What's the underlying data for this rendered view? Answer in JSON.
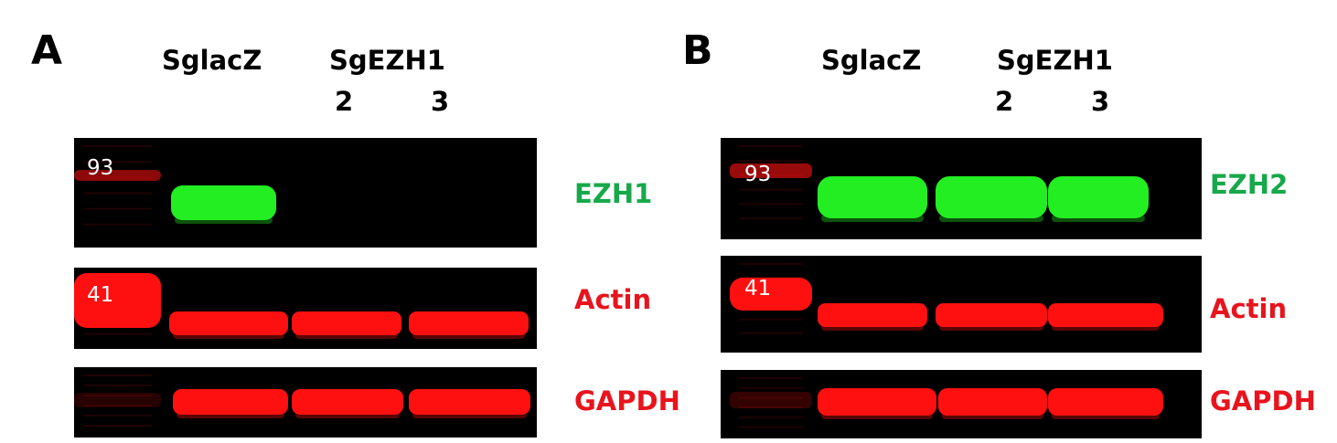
{
  "colors": {
    "green": "#17a84a",
    "red": "#e8141d",
    "blot_bg": "#000000",
    "band_green": "#22ee22",
    "band_red": "#ff1010"
  },
  "panels": [
    {
      "letter": "A",
      "control_label": "SglacZ",
      "sg_label": "SgEZH1",
      "lane_numbers": [
        "2",
        "3"
      ],
      "blots": [
        {
          "protein": "EZH1",
          "protein_color": "green",
          "marker": "93",
          "band_color": "green",
          "lane_levels": [
            1,
            0,
            0
          ]
        },
        {
          "protein": "Actin",
          "protein_color": "red",
          "marker": "41",
          "band_color": "red",
          "lane_levels": [
            1,
            1,
            1
          ]
        },
        {
          "protein": "GAPDH",
          "protein_color": "red",
          "marker": "",
          "band_color": "red",
          "lane_levels": [
            1,
            1,
            1
          ]
        }
      ]
    },
    {
      "letter": "B",
      "control_label": "SglacZ",
      "sg_label": "SgEZH1",
      "lane_numbers": [
        "2",
        "3"
      ],
      "blots": [
        {
          "protein": "EZH2",
          "protein_color": "green",
          "marker": "93",
          "band_color": "green",
          "lane_levels": [
            1,
            1,
            1
          ]
        },
        {
          "protein": "Actin",
          "protein_color": "red",
          "marker": "41",
          "band_color": "red",
          "lane_levels": [
            1,
            1,
            1
          ]
        },
        {
          "protein": "GAPDH",
          "protein_color": "red",
          "marker": "",
          "band_color": "red",
          "lane_levels": [
            1,
            1,
            1
          ]
        }
      ]
    }
  ]
}
